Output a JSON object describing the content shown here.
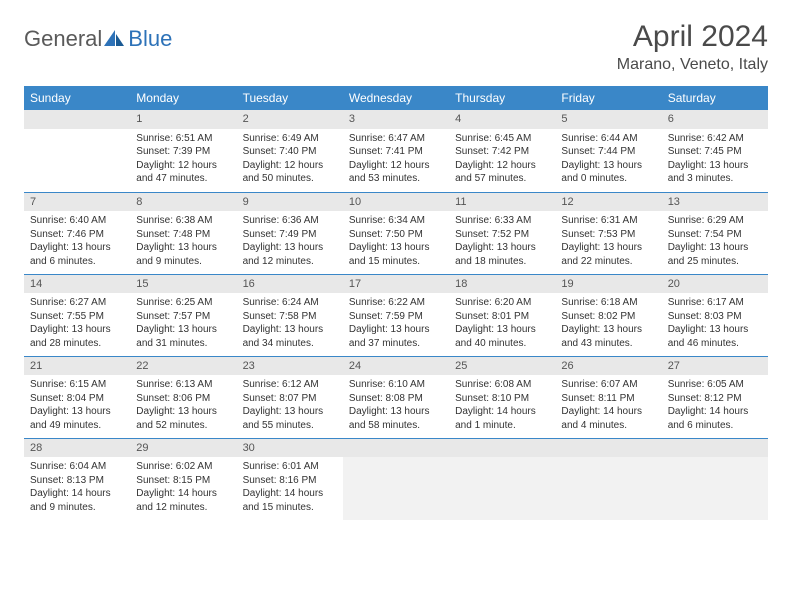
{
  "brand": {
    "general": "General",
    "blue": "Blue"
  },
  "title": "April 2024",
  "location": "Marano, Veneto, Italy",
  "colors": {
    "header_bg": "#3a87c8",
    "header_text": "#ffffff",
    "daynum_bg": "#e8e8e8",
    "border": "#3a87c8",
    "text": "#333333",
    "logo_gray": "#5a5a5a",
    "logo_blue": "#2d72b8"
  },
  "weekdays": [
    "Sunday",
    "Monday",
    "Tuesday",
    "Wednesday",
    "Thursday",
    "Friday",
    "Saturday"
  ],
  "weeks": [
    [
      {
        "n": "",
        "sr": "",
        "ss": "",
        "dl": ""
      },
      {
        "n": "1",
        "sr": "Sunrise: 6:51 AM",
        "ss": "Sunset: 7:39 PM",
        "dl": "Daylight: 12 hours and 47 minutes."
      },
      {
        "n": "2",
        "sr": "Sunrise: 6:49 AM",
        "ss": "Sunset: 7:40 PM",
        "dl": "Daylight: 12 hours and 50 minutes."
      },
      {
        "n": "3",
        "sr": "Sunrise: 6:47 AM",
        "ss": "Sunset: 7:41 PM",
        "dl": "Daylight: 12 hours and 53 minutes."
      },
      {
        "n": "4",
        "sr": "Sunrise: 6:45 AM",
        "ss": "Sunset: 7:42 PM",
        "dl": "Daylight: 12 hours and 57 minutes."
      },
      {
        "n": "5",
        "sr": "Sunrise: 6:44 AM",
        "ss": "Sunset: 7:44 PM",
        "dl": "Daylight: 13 hours and 0 minutes."
      },
      {
        "n": "6",
        "sr": "Sunrise: 6:42 AM",
        "ss": "Sunset: 7:45 PM",
        "dl": "Daylight: 13 hours and 3 minutes."
      }
    ],
    [
      {
        "n": "7",
        "sr": "Sunrise: 6:40 AM",
        "ss": "Sunset: 7:46 PM",
        "dl": "Daylight: 13 hours and 6 minutes."
      },
      {
        "n": "8",
        "sr": "Sunrise: 6:38 AM",
        "ss": "Sunset: 7:48 PM",
        "dl": "Daylight: 13 hours and 9 minutes."
      },
      {
        "n": "9",
        "sr": "Sunrise: 6:36 AM",
        "ss": "Sunset: 7:49 PM",
        "dl": "Daylight: 13 hours and 12 minutes."
      },
      {
        "n": "10",
        "sr": "Sunrise: 6:34 AM",
        "ss": "Sunset: 7:50 PM",
        "dl": "Daylight: 13 hours and 15 minutes."
      },
      {
        "n": "11",
        "sr": "Sunrise: 6:33 AM",
        "ss": "Sunset: 7:52 PM",
        "dl": "Daylight: 13 hours and 18 minutes."
      },
      {
        "n": "12",
        "sr": "Sunrise: 6:31 AM",
        "ss": "Sunset: 7:53 PM",
        "dl": "Daylight: 13 hours and 22 minutes."
      },
      {
        "n": "13",
        "sr": "Sunrise: 6:29 AM",
        "ss": "Sunset: 7:54 PM",
        "dl": "Daylight: 13 hours and 25 minutes."
      }
    ],
    [
      {
        "n": "14",
        "sr": "Sunrise: 6:27 AM",
        "ss": "Sunset: 7:55 PM",
        "dl": "Daylight: 13 hours and 28 minutes."
      },
      {
        "n": "15",
        "sr": "Sunrise: 6:25 AM",
        "ss": "Sunset: 7:57 PM",
        "dl": "Daylight: 13 hours and 31 minutes."
      },
      {
        "n": "16",
        "sr": "Sunrise: 6:24 AM",
        "ss": "Sunset: 7:58 PM",
        "dl": "Daylight: 13 hours and 34 minutes."
      },
      {
        "n": "17",
        "sr": "Sunrise: 6:22 AM",
        "ss": "Sunset: 7:59 PM",
        "dl": "Daylight: 13 hours and 37 minutes."
      },
      {
        "n": "18",
        "sr": "Sunrise: 6:20 AM",
        "ss": "Sunset: 8:01 PM",
        "dl": "Daylight: 13 hours and 40 minutes."
      },
      {
        "n": "19",
        "sr": "Sunrise: 6:18 AM",
        "ss": "Sunset: 8:02 PM",
        "dl": "Daylight: 13 hours and 43 minutes."
      },
      {
        "n": "20",
        "sr": "Sunrise: 6:17 AM",
        "ss": "Sunset: 8:03 PM",
        "dl": "Daylight: 13 hours and 46 minutes."
      }
    ],
    [
      {
        "n": "21",
        "sr": "Sunrise: 6:15 AM",
        "ss": "Sunset: 8:04 PM",
        "dl": "Daylight: 13 hours and 49 minutes."
      },
      {
        "n": "22",
        "sr": "Sunrise: 6:13 AM",
        "ss": "Sunset: 8:06 PM",
        "dl": "Daylight: 13 hours and 52 minutes."
      },
      {
        "n": "23",
        "sr": "Sunrise: 6:12 AM",
        "ss": "Sunset: 8:07 PM",
        "dl": "Daylight: 13 hours and 55 minutes."
      },
      {
        "n": "24",
        "sr": "Sunrise: 6:10 AM",
        "ss": "Sunset: 8:08 PM",
        "dl": "Daylight: 13 hours and 58 minutes."
      },
      {
        "n": "25",
        "sr": "Sunrise: 6:08 AM",
        "ss": "Sunset: 8:10 PM",
        "dl": "Daylight: 14 hours and 1 minute."
      },
      {
        "n": "26",
        "sr": "Sunrise: 6:07 AM",
        "ss": "Sunset: 8:11 PM",
        "dl": "Daylight: 14 hours and 4 minutes."
      },
      {
        "n": "27",
        "sr": "Sunrise: 6:05 AM",
        "ss": "Sunset: 8:12 PM",
        "dl": "Daylight: 14 hours and 6 minutes."
      }
    ],
    [
      {
        "n": "28",
        "sr": "Sunrise: 6:04 AM",
        "ss": "Sunset: 8:13 PM",
        "dl": "Daylight: 14 hours and 9 minutes."
      },
      {
        "n": "29",
        "sr": "Sunrise: 6:02 AM",
        "ss": "Sunset: 8:15 PM",
        "dl": "Daylight: 14 hours and 12 minutes."
      },
      {
        "n": "30",
        "sr": "Sunrise: 6:01 AM",
        "ss": "Sunset: 8:16 PM",
        "dl": "Daylight: 14 hours and 15 minutes."
      },
      {
        "n": "",
        "sr": "",
        "ss": "",
        "dl": "",
        "trailing": true
      },
      {
        "n": "",
        "sr": "",
        "ss": "",
        "dl": "",
        "trailing": true
      },
      {
        "n": "",
        "sr": "",
        "ss": "",
        "dl": "",
        "trailing": true
      },
      {
        "n": "",
        "sr": "",
        "ss": "",
        "dl": "",
        "trailing": true
      }
    ]
  ]
}
